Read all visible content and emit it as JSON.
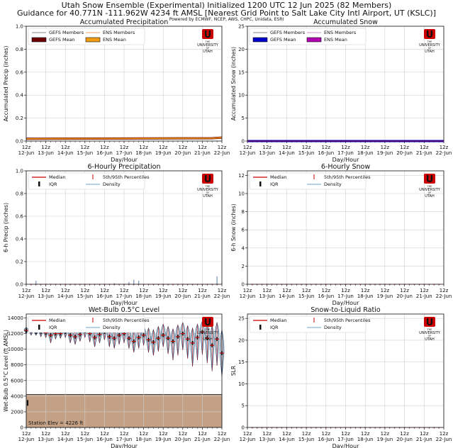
{
  "header": {
    "line1": "Utah Snow Ensemble (Experimental) Initialized 1200 UTC 12 Jun 2025 (82 Members)",
    "line2": "Guidance for 40.771N -111.962W 4234 ft AMSL [Nearest Grid Point to Salt Lake City Intl Airport, UT (KSLC)]",
    "line3": "Powered by ECMWF, NCEP, AWS, CHPC, Unidata, ESRI"
  },
  "logo": {
    "letter": "U",
    "the": "THE",
    "university": "UNIVERSITY",
    "of": "OF",
    "utah": "UTAH",
    "color": "#cc0000"
  },
  "x_axis": {
    "xlabel": "Day/Hour",
    "ticks": [
      "12z\n12-Jun",
      "12z\n13-Jun",
      "12z\n14-Jun",
      "12z\n15-Jun",
      "12z\n16-Jun",
      "12z\n17-Jun",
      "12z\n18-Jun",
      "12z\n19-Jun",
      "12z\n20-Jun",
      "12z\n21-Jun",
      "12z\n22-Jun"
    ]
  },
  "chart_data": [
    {
      "type": "line",
      "title": "Accumulated Precipitation",
      "ylabel": "Accumulated Precip (inches)",
      "ylim": [
        0,
        1.0
      ],
      "yticks": [
        "0.0",
        "0.2",
        "0.4",
        "0.6",
        "0.8",
        "1.0"
      ],
      "legend": [
        {
          "name": "GEFS Members",
          "color": "#9e9e9e",
          "style": "line"
        },
        {
          "name": "ENS Members",
          "color": "#f4b183",
          "style": "line"
        },
        {
          "name": "GEFS Mean",
          "color": "#6b0000",
          "style": "box"
        },
        {
          "name": "ENS Mean",
          "color": "#f39c12",
          "style": "box"
        }
      ],
      "series": [
        {
          "name": "GEFS Mean",
          "x": [
            0,
            9.5,
            10
          ],
          "values": [
            0.02,
            0.025,
            0.03
          ]
        },
        {
          "name": "ENS Mean",
          "x": [
            0,
            9.5,
            10
          ],
          "values": [
            0.02,
            0.025,
            0.03
          ]
        }
      ],
      "grid": true,
      "legend_placement": "top-left"
    },
    {
      "type": "line",
      "title": "Accumulated Snow",
      "ylabel": "Accumulated Snow (inches)",
      "ylim": [
        0,
        25
      ],
      "yticks": [
        "0",
        "5",
        "10",
        "15",
        "20",
        "25"
      ],
      "legend": [
        {
          "name": "GEFS Members",
          "color": "#9e9e9e",
          "style": "line"
        },
        {
          "name": "ENS Members",
          "color": "#d9a6d9",
          "style": "line"
        },
        {
          "name": "GEFS Mean",
          "color": "#0000cc",
          "style": "box"
        },
        {
          "name": "ENS Mean",
          "color": "#b000b0",
          "style": "box"
        }
      ],
      "series": [
        {
          "name": "GEFS Mean",
          "x": [
            0,
            10
          ],
          "values": [
            0,
            0
          ]
        },
        {
          "name": "ENS Mean",
          "x": [
            0,
            10
          ],
          "values": [
            0,
            0
          ]
        }
      ],
      "grid": true,
      "legend_placement": "top-left"
    },
    {
      "type": "box",
      "title": "6-Hourly Precipitation",
      "ylabel": "6-h Precip (inches)",
      "ylim": [
        0,
        1.0
      ],
      "yticks": [
        "0.0",
        "0.2",
        "0.4",
        "0.6",
        "0.8",
        "1.0"
      ],
      "legend": [
        {
          "name": "Median",
          "color": "#cc0000",
          "style": "line"
        },
        {
          "name": "5th/95th Percentiles",
          "color": "#cc0000",
          "style": "vline"
        },
        {
          "name": "IQR",
          "color": "#111111",
          "style": "bar"
        },
        {
          "name": "Density",
          "color": "#8ab6d6",
          "style": "line"
        }
      ],
      "p95_spikes": [
        {
          "x": 0.5,
          "value": 0.03
        },
        {
          "x": 4.5,
          "value": 0.01
        },
        {
          "x": 5.25,
          "value": 0.02
        },
        {
          "x": 5.5,
          "value": 0.04
        },
        {
          "x": 5.75,
          "value": 0.03
        },
        {
          "x": 9.75,
          "value": 0.07
        },
        {
          "x": 10,
          "value": 0.02
        }
      ],
      "grid": true,
      "legend_placement": "top-left"
    },
    {
      "type": "box",
      "title": "6-Hourly Snow",
      "ylabel": "6-h Snow (inches)",
      "ylim": [
        0,
        12.5
      ],
      "yticks": [
        "0",
        "2",
        "4",
        "6",
        "8",
        "10",
        "12"
      ],
      "legend": [
        {
          "name": "Median",
          "color": "#cc0000",
          "style": "line"
        },
        {
          "name": "5th/95th Percentiles",
          "color": "#cc0000",
          "style": "vline"
        },
        {
          "name": "IQR",
          "color": "#111111",
          "style": "bar"
        },
        {
          "name": "Density",
          "color": "#8ab6d6",
          "style": "line"
        }
      ],
      "grid": true,
      "legend_placement": "top-left"
    },
    {
      "type": "violin",
      "title": "Wet-Bulb 0.5°C Level",
      "ylabel": "Wet-Bulb 0.5°C Level (ft AMSL)",
      "ylim": [
        0,
        14500
      ],
      "yticks": [
        "0",
        "2000",
        "4000",
        "6000",
        "8000",
        "10000",
        "12000",
        "14000"
      ],
      "station_elev": 4226,
      "station_label": "Station Elev = 4226 ft",
      "terrain_color": "#c4a084",
      "legend": [
        {
          "name": "Median",
          "color": "#cc0000",
          "style": "line"
        },
        {
          "name": "5th/95th Percentiles",
          "color": "#cc0000",
          "style": "vline"
        },
        {
          "name": "IQR",
          "color": "#111111",
          "style": "bar"
        },
        {
          "name": "Density",
          "color": "#8ab6d6",
          "style": "line"
        }
      ],
      "x": [
        0,
        0.25,
        0.5,
        0.75,
        1,
        1.25,
        1.5,
        1.75,
        2,
        2.25,
        2.5,
        2.75,
        3,
        3.25,
        3.5,
        3.75,
        4,
        4.25,
        4.5,
        4.75,
        5,
        5.25,
        5.5,
        5.75,
        6,
        6.25,
        6.5,
        6.75,
        7,
        7.25,
        7.5,
        7.75,
        8,
        8.25,
        8.5,
        8.75,
        9,
        9.25,
        9.5,
        9.75,
        10
      ],
      "median": [
        12400,
        12300,
        12200,
        12200,
        12100,
        11800,
        12000,
        12000,
        12200,
        11800,
        11600,
        11900,
        12300,
        12000,
        11500,
        11900,
        12200,
        11600,
        11400,
        11800,
        12000,
        11400,
        11000,
        11500,
        11800,
        11200,
        10900,
        11400,
        11800,
        11400,
        11000,
        11600,
        12000,
        11300,
        10800,
        11500,
        12200,
        11400,
        10500,
        11300,
        9500
      ],
      "p5": [
        12000,
        11800,
        11800,
        11600,
        11500,
        10800,
        11300,
        11400,
        11500,
        10800,
        10600,
        11000,
        11500,
        10900,
        10300,
        10800,
        11200,
        10300,
        10100,
        10600,
        10800,
        10100,
        9600,
        10100,
        10500,
        9600,
        9200,
        9700,
        10300,
        9400,
        8600,
        9200,
        9900,
        8800,
        7800,
        8600,
        9300,
        8200,
        7200,
        7900,
        6500
      ],
      "p95": [
        12800,
        12700,
        12600,
        12700,
        12600,
        12500,
        12600,
        12700,
        12800,
        12600,
        12400,
        12700,
        13000,
        12700,
        12500,
        12800,
        13000,
        12600,
        12500,
        12800,
        13000,
        12700,
        12400,
        12800,
        13000,
        12700,
        12500,
        12900,
        13200,
        12900,
        12600,
        13100,
        13400,
        13000,
        12700,
        13200,
        13600,
        13300,
        13000,
        13400,
        12500
      ],
      "grid": true,
      "legend_placement": "top-left"
    },
    {
      "type": "box",
      "title": "Snow-to-Liquid Ratio",
      "ylabel": "SLR",
      "ylim": [
        0,
        26
      ],
      "yticks": [
        "0",
        "5",
        "10",
        "15",
        "20",
        "25"
      ],
      "legend": [
        {
          "name": "Median",
          "color": "#cc0000",
          "style": "line"
        },
        {
          "name": "5th/95th Percentiles",
          "color": "#cc0000",
          "style": "vline"
        },
        {
          "name": "IQR",
          "color": "#111111",
          "style": "bar"
        },
        {
          "name": "Density",
          "color": "#8ab6d6",
          "style": "line"
        }
      ],
      "grid": true,
      "legend_placement": "top-left"
    }
  ]
}
